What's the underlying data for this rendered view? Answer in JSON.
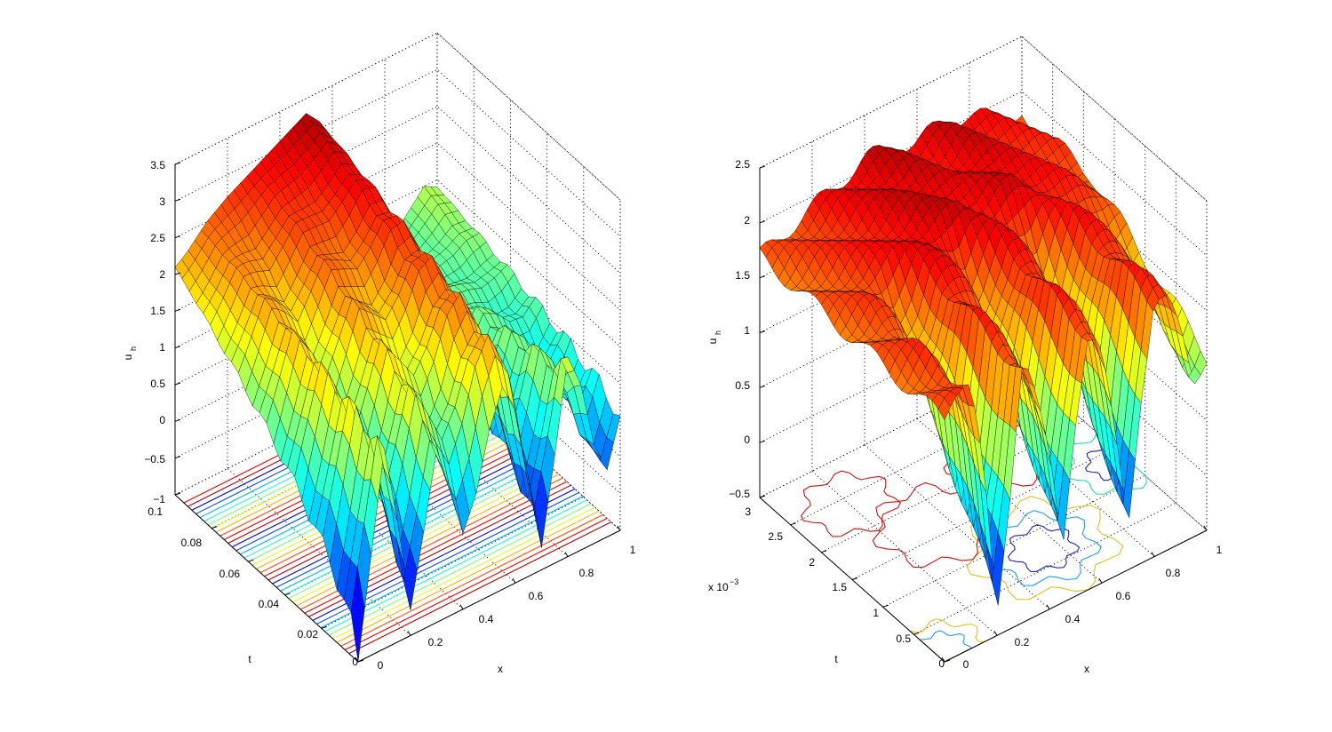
{
  "chart_data": [
    {
      "type": "surface3d",
      "title": "",
      "xlabel": "x",
      "ylabel": "t",
      "zlabel": "u",
      "zlabel_sub": "h",
      "xlim": [
        0,
        1
      ],
      "ylim": [
        0,
        0.1
      ],
      "zlim": [
        -1,
        3.5
      ],
      "x_ticks": [
        "0",
        "0.2",
        "0.4",
        "0.6",
        "0.8",
        "1"
      ],
      "y_ticks": [
        "0",
        "0.02",
        "0.04",
        "0.06",
        "0.08",
        "0.1"
      ],
      "z_ticks": [
        "−1",
        "−0.5",
        "0",
        "0.5",
        "1",
        "1.5",
        "2",
        "2.5",
        "3",
        "3.5"
      ],
      "y_exponent": "",
      "colormap": "jet",
      "contour_projection": true,
      "grid": true,
      "surface_profile_at_t_max": {
        "x": [
          0,
          0.04,
          0.08,
          0.12,
          0.16,
          0.2,
          0.25,
          0.3,
          0.35,
          0.4,
          0.45,
          0.5,
          0.55,
          0.6,
          0.65,
          0.7,
          0.75,
          0.8,
          0.85,
          0.9,
          0.95,
          1
        ],
        "u": [
          2.1,
          2.2,
          2.35,
          2.5,
          2.6,
          2.7,
          2.8,
          2.9,
          3.0,
          3.1,
          3.2,
          3.3,
          3.1,
          2.7,
          2.1,
          1.6,
          1.2,
          1.0,
          1.1,
          1.3,
          1.5,
          1.4
        ]
      },
      "surface_profile_at_t_min": {
        "x": [
          0,
          0.05,
          0.1,
          0.15,
          0.2,
          0.25,
          0.3,
          0.35,
          0.4,
          0.45,
          0.5,
          0.55,
          0.6,
          0.65,
          0.7,
          0.75,
          0.8,
          0.85,
          0.9,
          0.95,
          1
        ],
        "u": [
          -1.0,
          0.3,
          1.6,
          0.5,
          -0.8,
          0.2,
          1.3,
          0.7,
          0.1,
          0.6,
          1.4,
          1.9,
          1.5,
          0.3,
          -0.7,
          0.4,
          1.6,
          1.1,
          0.2,
          -0.2,
          0.5
        ]
      }
    },
    {
      "type": "surface3d",
      "title": "",
      "xlabel": "x",
      "ylabel": "t",
      "zlabel": "u",
      "zlabel_sub": "h",
      "xlim": [
        0,
        1
      ],
      "ylim": [
        0,
        0.003
      ],
      "zlim": [
        -0.5,
        2.5
      ],
      "x_ticks": [
        "0",
        "0.2",
        "0.4",
        "0.6",
        "0.8",
        "1"
      ],
      "y_ticks": [
        "0",
        "0.5",
        "1",
        "1.5",
        "2",
        "2.5",
        "3"
      ],
      "z_ticks": [
        "−0.5",
        "0",
        "0.5",
        "1",
        "1.5",
        "2",
        "2.5"
      ],
      "y_exponent": "x 10",
      "y_exponent_power": "−3",
      "colormap": "jet",
      "contour_projection": true,
      "grid": true,
      "surface_profile_at_t_min": {
        "x": [
          0,
          0.05,
          0.1,
          0.15,
          0.2,
          0.25,
          0.3,
          0.35,
          0.4,
          0.45,
          0.5,
          0.55,
          0.6,
          0.65,
          0.7,
          0.75,
          0.8,
          0.85,
          0.9,
          0.95,
          1
        ],
        "u": [
          1.7,
          1.8,
          1.9,
          1.2,
          -0.3,
          0.6,
          1.9,
          1.6,
          1.0,
          -0.1,
          1.0,
          1.9,
          1.7,
          0.8,
          -0.2,
          1.0,
          1.9,
          1.8,
          1.4,
          0.9,
          1.1
        ]
      },
      "surface_profile_at_t_max": {
        "x": [
          0,
          0.1,
          0.2,
          0.3,
          0.4,
          0.5,
          0.6,
          0.7,
          0.8,
          0.9,
          1
        ],
        "u": [
          1.7,
          1.8,
          1.9,
          2.0,
          2.1,
          2.1,
          2.0,
          2.1,
          2.0,
          1.9,
          1.8
        ]
      }
    }
  ]
}
